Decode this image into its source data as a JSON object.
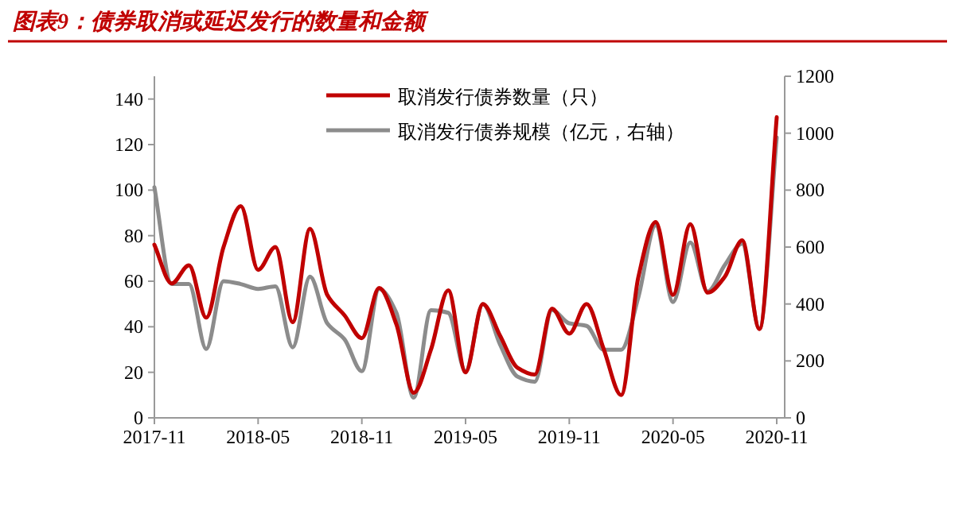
{
  "chart_data": {
    "type": "line",
    "title": "图表9：债券取消或延迟发行的数量和金额",
    "categories": [
      "2017-11",
      null,
      null,
      null,
      null,
      null,
      "2018-05",
      null,
      null,
      null,
      null,
      null,
      "2018-11",
      null,
      null,
      null,
      null,
      null,
      "2019-05",
      null,
      null,
      null,
      null,
      null,
      "2019-11",
      null,
      null,
      null,
      null,
      null,
      "2020-05",
      null,
      null,
      null,
      null,
      null,
      "2020-11"
    ],
    "series": [
      {
        "name": "取消发行债券数量（只）",
        "color": "#c00000",
        "values": [
          76,
          59,
          67,
          44,
          75,
          93,
          65,
          75,
          42,
          83,
          54,
          45,
          35,
          57,
          41,
          11,
          30,
          56,
          20,
          50,
          36,
          22,
          19,
          48,
          37,
          50,
          30,
          10,
          62,
          86,
          54,
          85,
          55,
          62,
          78,
          39,
          132
        ]
      },
      {
        "name": "取消发行债券规模（亿元，右轴）",
        "color": "#8c8c8c",
        "axis": "y2",
        "values": [
          810,
          470,
          470,
          242,
          480,
          470,
          453,
          462,
          248,
          496,
          332,
          276,
          164,
          453,
          369,
          71,
          378,
          369,
          164,
          400,
          257,
          145,
          127,
          379,
          332,
          323,
          239,
          239,
          425,
          677,
          407,
          616,
          444,
          537,
          612,
          313,
          985
        ]
      }
    ],
    "ylim": [
      0,
      150
    ],
    "yticks": [
      0,
      20,
      40,
      60,
      80,
      100,
      120,
      140
    ],
    "y2lim": [
      0,
      1200
    ],
    "y2ticks": [
      0,
      200,
      400,
      600,
      800,
      1000,
      1200
    ],
    "legend": "top",
    "grid": false
  }
}
